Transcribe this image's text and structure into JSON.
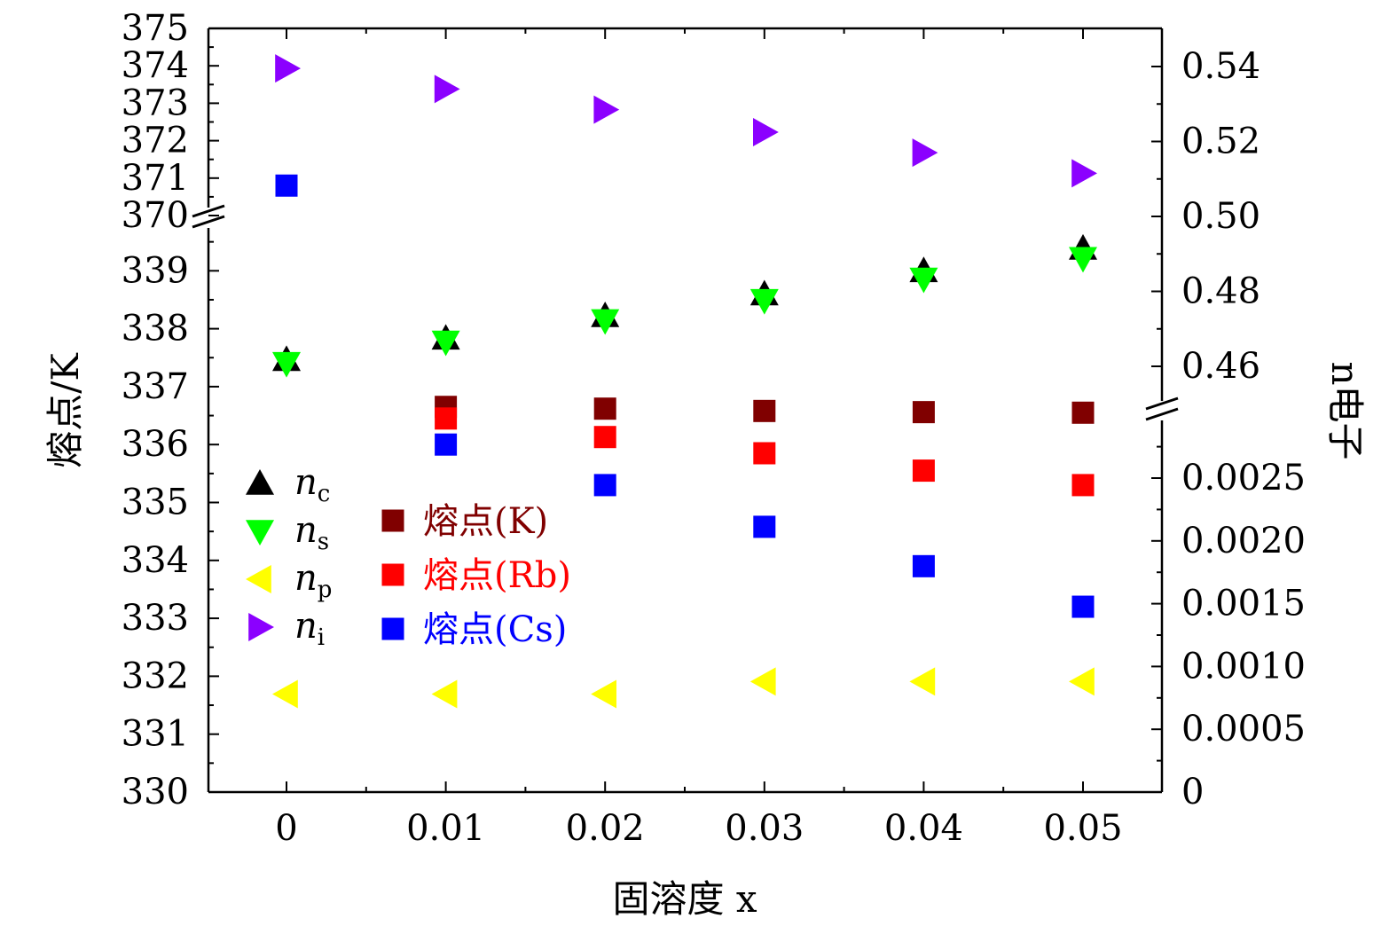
{
  "chart_data": {
    "type": "scatter",
    "x_label": "固溶度 x",
    "y_left_label": "熔点/K",
    "y_right_label": "n电子",
    "x_ticks": [
      "0",
      "0.01",
      "0.02",
      "0.03",
      "0.04",
      "0.05"
    ],
    "x_values": [
      0,
      0.01,
      0.02,
      0.03,
      0.04,
      0.05
    ],
    "xlim": [
      -0.005,
      0.055
    ],
    "y_left_upper_ticks": [
      "370",
      "371",
      "372",
      "373",
      "374",
      "375"
    ],
    "y_left_lower_ticks": [
      "330",
      "331",
      "332",
      "333",
      "334",
      "335",
      "336",
      "337",
      "338",
      "339"
    ],
    "y_right_upper_ticks": [
      "0.46",
      "0.48",
      "0.50",
      "0.52",
      "0.54"
    ],
    "y_right_lower_ticks": [
      "0",
      "0.0005",
      "0.0010",
      "0.0015",
      "0.0020",
      "0.0025"
    ],
    "y_left_upper_range": [
      370,
      375
    ],
    "y_left_lower_range": [
      330,
      340
    ],
    "y_right_upper_range": [
      0.455,
      0.55
    ],
    "y_right_lower_range": [
      0,
      0.003
    ],
    "legend_electron": [
      {
        "symbol": "triangle-up",
        "var": "n",
        "sub": "c",
        "color": "#000000"
      },
      {
        "symbol": "triangle-down",
        "var": "n",
        "sub": "s",
        "color": "#00ff00"
      },
      {
        "symbol": "triangle-left",
        "var": "n",
        "sub": "p",
        "color": "#ffff00"
      },
      {
        "symbol": "triangle-right",
        "var": "n",
        "sub": "i",
        "color": "#8b00ff"
      }
    ],
    "legend_melting": [
      {
        "label": "熔点(K)",
        "color": "#800000"
      },
      {
        "label": "熔点(Rb)",
        "color": "#ff0000"
      },
      {
        "label": "熔点(Cs)",
        "color": "#0000ff"
      }
    ],
    "series": [
      {
        "name": "熔点(K)",
        "marker": "square",
        "color": "#800000",
        "axis": "left",
        "x": [
          0.01,
          0.02,
          0.03,
          0.04,
          0.05
        ],
        "values": [
          336.65,
          336.62,
          336.58,
          336.56,
          336.55
        ]
      },
      {
        "name": "熔点(Rb)",
        "marker": "square",
        "color": "#ff0000",
        "axis": "left",
        "x": [
          0.01,
          0.02,
          0.03,
          0.04,
          0.05
        ],
        "values": [
          336.45,
          336.13,
          335.85,
          335.55,
          335.3
        ]
      },
      {
        "name": "熔点(Cs)",
        "marker": "square",
        "color": "#0000ff",
        "axis": "left",
        "x": [
          0,
          0.01,
          0.02,
          0.03,
          0.04,
          0.05
        ],
        "values": [
          370.8,
          336.0,
          335.3,
          334.58,
          333.9,
          333.2
        ]
      },
      {
        "name": "n_c",
        "marker": "triangle-up",
        "color": "#000000",
        "axis": "right",
        "x": [
          0,
          0.01,
          0.02,
          0.03,
          0.04,
          0.05
        ],
        "values": [
          0.4618,
          0.4675,
          0.4735,
          0.4793,
          0.4855,
          0.4915
        ]
      },
      {
        "name": "n_s",
        "marker": "triangle-down",
        "color": "#00ff00",
        "axis": "right",
        "x": [
          0,
          0.01,
          0.02,
          0.03,
          0.04,
          0.05
        ],
        "values": [
          0.4608,
          0.4665,
          0.4722,
          0.4776,
          0.4833,
          0.4888
        ]
      },
      {
        "name": "n_p",
        "marker": "triangle-left",
        "color": "#ffff00",
        "axis": "right",
        "x": [
          0,
          0.01,
          0.02,
          0.03,
          0.04,
          0.05
        ],
        "values": [
          0.00078,
          0.00078,
          0.00078,
          0.00088,
          0.00088,
          0.00088
        ]
      },
      {
        "name": "n_i",
        "marker": "triangle-right",
        "color": "#8b00ff",
        "axis": "right",
        "x": [
          0,
          0.01,
          0.02,
          0.03,
          0.04,
          0.05
        ],
        "values": [
          0.5395,
          0.534,
          0.5285,
          0.5225,
          0.517,
          0.5115
        ]
      }
    ]
  }
}
